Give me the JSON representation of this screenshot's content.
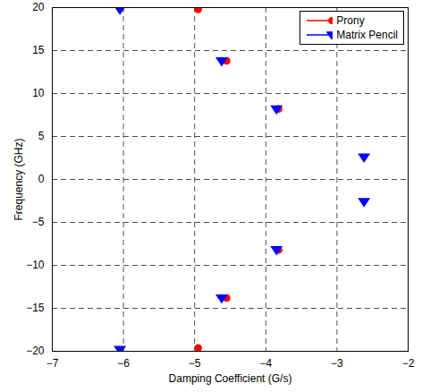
{
  "chart_data": {
    "type": "scatter",
    "xlabel": "Damping Coefficient (G/s)",
    "ylabel": "Frequency (GHz)",
    "xlim": [
      -7,
      -2
    ],
    "xticks": [
      -7,
      -6,
      -5,
      -4,
      -3,
      -2
    ],
    "ylim": [
      -20,
      20
    ],
    "yticks": [
      -20,
      -15,
      -10,
      -5,
      0,
      5,
      10,
      15,
      20
    ],
    "grid": true,
    "legend": "upper right",
    "series": [
      {
        "name": "Prony",
        "color": "#ff0000",
        "marker": "circle",
        "x": [
          -4.95,
          -4.55,
          -3.82,
          -3.82,
          -4.55,
          -4.95
        ],
        "values": [
          19.8,
          13.8,
          8.2,
          -8.2,
          -13.8,
          -19.6
        ]
      },
      {
        "name": "Matrix Pencil",
        "color": "#0000ff",
        "marker": "triangle-down",
        "x": [
          -6.05,
          -4.62,
          -3.85,
          -2.62,
          -2.62,
          -3.85,
          -4.62,
          -6.05
        ],
        "values": [
          19.8,
          13.8,
          8.2,
          2.6,
          -2.6,
          -8.2,
          -13.8,
          -19.8
        ]
      }
    ]
  }
}
